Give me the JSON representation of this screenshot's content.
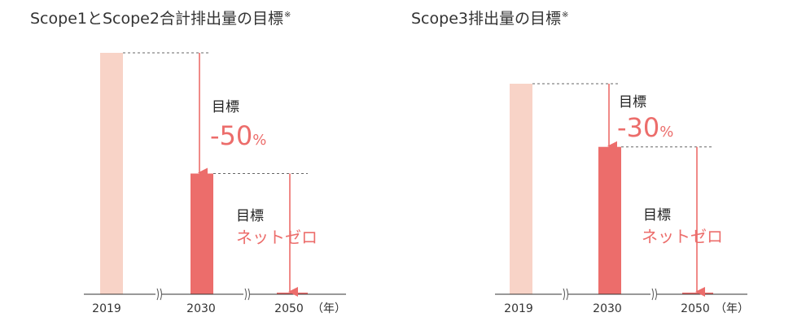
{
  "chart_data": [
    {
      "type": "bar",
      "title": "Scope1とScope2合計排出量の目標",
      "title_mark": "※",
      "categories": [
        "2019",
        "2030",
        "2050"
      ],
      "unit_label": "（年）",
      "values": [
        100,
        50,
        0
      ],
      "colors": [
        "#f8d3c7",
        "#ec6d6b",
        "#ec6d6b"
      ],
      "axis_breaks": true,
      "annotations": [
        {
          "label": "目標",
          "value": "-50",
          "unit": "%",
          "from": "2019",
          "to": "2030"
        },
        {
          "label": "目標",
          "value": "ネットゼロ",
          "from": "2030",
          "to": "2050"
        }
      ]
    },
    {
      "type": "bar",
      "title": "Scope3排出量の目標",
      "title_mark": "※",
      "categories": [
        "2019",
        "2030",
        "2050"
      ],
      "unit_label": "（年）",
      "values": [
        100,
        70,
        0
      ],
      "colors": [
        "#f8d3c7",
        "#ec6d6b",
        "#ec6d6b"
      ],
      "axis_breaks": true,
      "annotations": [
        {
          "label": "目標",
          "value": "-30",
          "unit": "%",
          "from": "2019",
          "to": "2030"
        },
        {
          "label": "目標",
          "value": "ネットゼロ",
          "from": "2030",
          "to": "2050"
        }
      ]
    }
  ]
}
